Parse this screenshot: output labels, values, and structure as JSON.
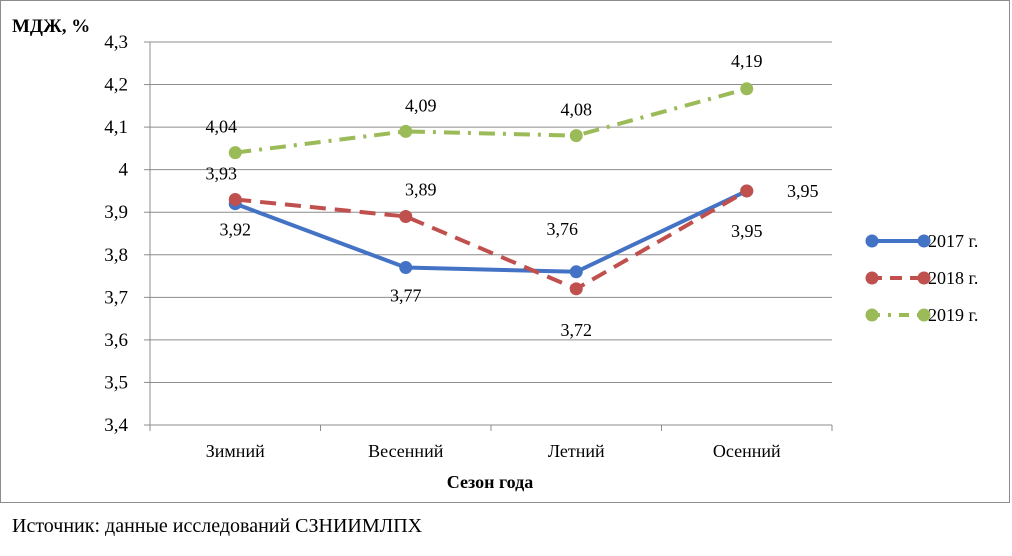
{
  "chart_data": {
    "type": "line",
    "ylabel": "МДЖ, %",
    "xlabel": "Сезон года",
    "categories": [
      "Зимний",
      "Весенний",
      "Летний",
      "Осенний"
    ],
    "ylim": [
      3.4,
      4.3
    ],
    "ytick_step": 0.1,
    "yticks": [
      "3,4",
      "3,5",
      "3,6",
      "3,7",
      "3,8",
      "3,9",
      "4",
      "4,1",
      "4,2",
      "4,3"
    ],
    "grid": true,
    "legend": "right",
    "series": [
      {
        "name": "2017 г.",
        "values": [
          3.92,
          3.77,
          3.76,
          3.95
        ],
        "labels": [
          "3,92",
          "3,77",
          "3,76",
          "3,95"
        ],
        "color": "#4472c4",
        "dash": "solid"
      },
      {
        "name": "2018 г.",
        "values": [
          3.93,
          3.89,
          3.72,
          3.95
        ],
        "labels": [
          "3,93",
          "3,89",
          "3,72",
          "3,95"
        ],
        "color": "#c0504d",
        "dash": "dash"
      },
      {
        "name": "2019 г.",
        "values": [
          4.04,
          4.09,
          4.08,
          4.19
        ],
        "labels": [
          "4,04",
          "4,09",
          "4,08",
          "4,19"
        ],
        "color": "#9bbb59",
        "dash": "dash-dot"
      }
    ]
  },
  "source": "Источник: данные исследований СЗНИИМЛПХ"
}
